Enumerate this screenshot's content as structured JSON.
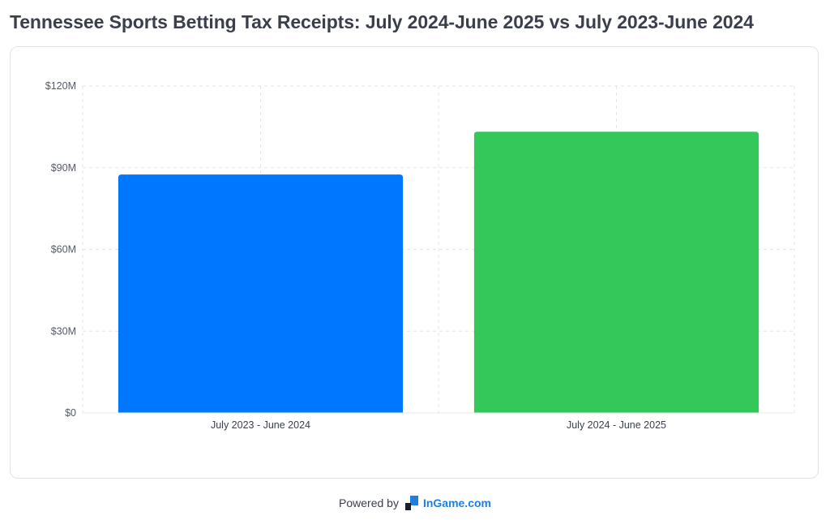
{
  "page": {
    "title": "Tennessee Sports Betting Tax Receipts: July 2024-June 2025 vs July 2023-June 2024"
  },
  "footer": {
    "powered_by": "Powered by",
    "brand": "InGame.com",
    "logo_icon": "ingame-logo-icon"
  },
  "colors": {
    "bar_2023_2024": "#0077ff",
    "bar_2024_2025": "#34c759",
    "brand_blue": "#1f7fe0",
    "grid": "#e6e6e6"
  },
  "chart_data": {
    "type": "bar",
    "title": "",
    "xlabel": "",
    "ylabel": "",
    "categories": [
      "July 2023 - June 2024",
      "July 2024 - June 2025"
    ],
    "values": [
      87.5,
      103.2
    ],
    "value_unit": "millions USD",
    "colors": [
      "#0077ff",
      "#34c759"
    ],
    "ylim": [
      0,
      120
    ],
    "yticks": [
      0,
      30,
      60,
      90,
      120
    ],
    "ytick_labels": [
      "$0",
      "$30M",
      "$60M",
      "$90M",
      "$120M"
    ],
    "grid": true,
    "grid_style": "dashed",
    "legend": "none"
  }
}
